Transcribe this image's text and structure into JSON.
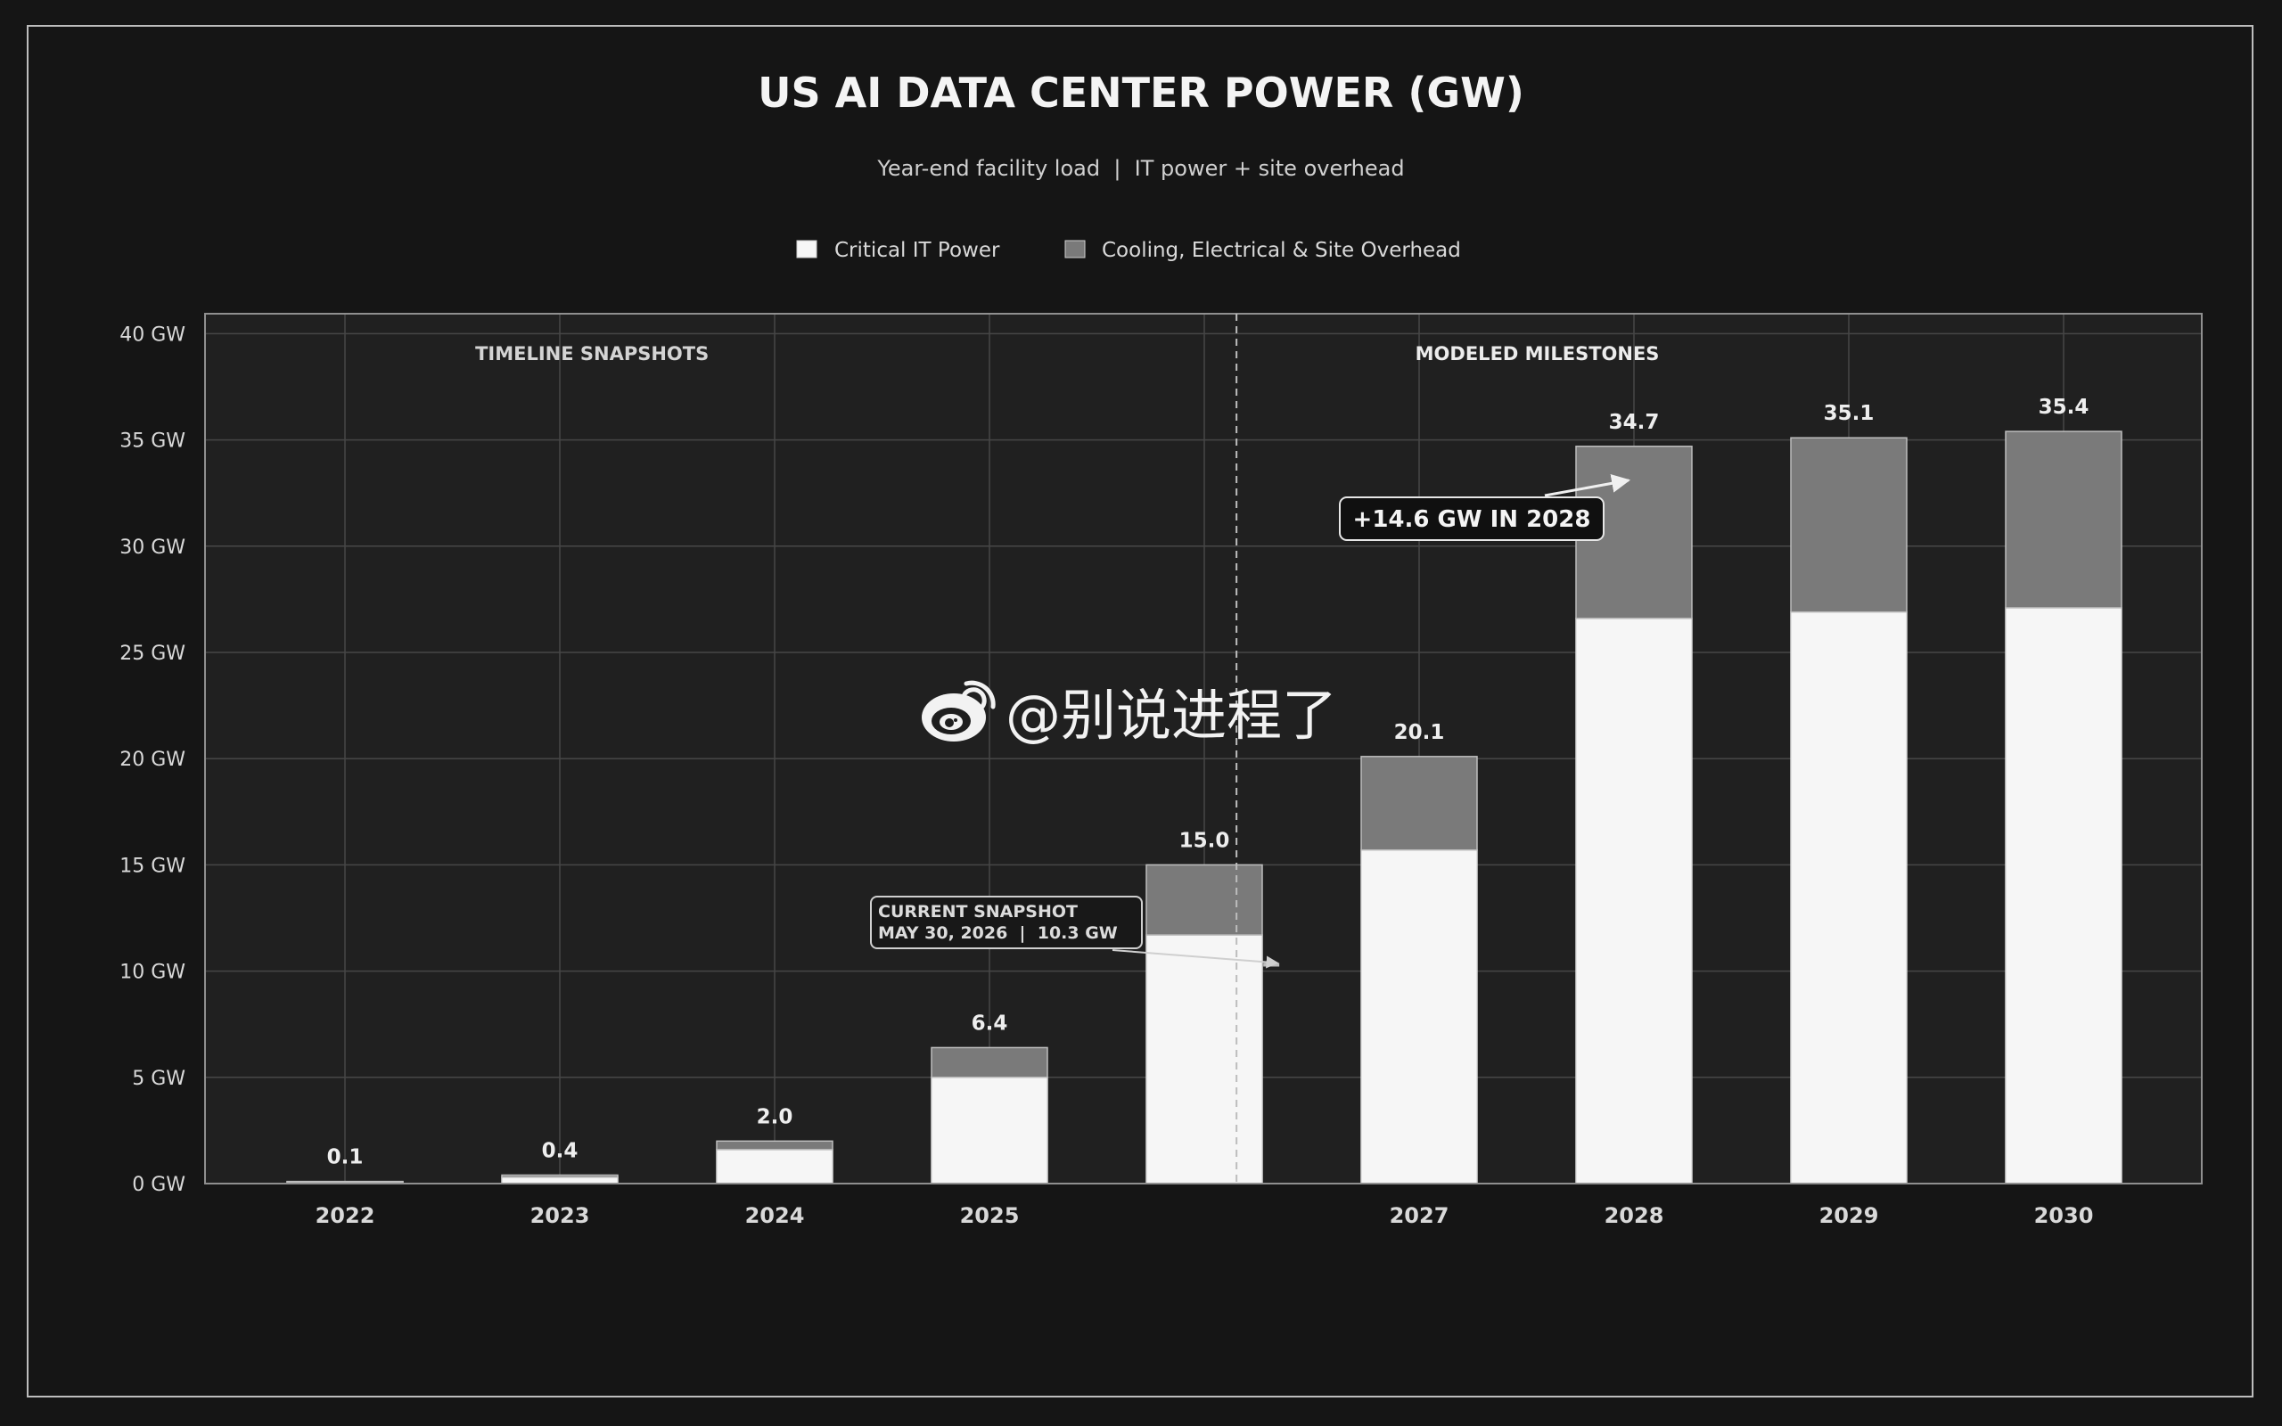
{
  "chart_data": {
    "type": "bar",
    "stacked": true,
    "title": "US AI DATA CENTER POWER (GW)",
    "subtitle": "Year-end facility load  |  IT power + site overhead",
    "xlabel": "",
    "ylabel": "",
    "y_unit_suffix": " GW",
    "ylim": [
      0,
      41
    ],
    "yticks": [
      0,
      5,
      10,
      15,
      20,
      25,
      30,
      35,
      40
    ],
    "grid": true,
    "legend_position": "top-center",
    "categories": [
      "2022",
      "2023",
      "2024",
      "2025",
      "",
      "2027",
      "2028",
      "2029",
      "2030"
    ],
    "totals_labels": [
      "0.1",
      "0.4",
      "2.0",
      "6.4",
      "15.0",
      "20.1",
      "34.7",
      "35.1",
      "35.4"
    ],
    "series": [
      {
        "name": "Critical IT Power",
        "color": "#f6f6f6",
        "values": [
          0.08,
          0.3,
          1.6,
          5.0,
          11.7,
          15.7,
          26.6,
          26.9,
          27.1
        ]
      },
      {
        "name": "Cooling, Electrical & Site Overhead",
        "color": "#7a7a7a",
        "values": [
          0.02,
          0.1,
          0.4,
          1.4,
          3.3,
          4.4,
          8.1,
          8.2,
          8.3
        ]
      }
    ],
    "section_labels": {
      "left": "TIMELINE SNAPSHOTS",
      "right": "MODELED MILESTONES"
    },
    "divider_x_position": 4.15,
    "current_snapshot": {
      "line1": "CURRENT SNAPSHOT",
      "line2": "MAY 30, 2026  |  10.3 GW",
      "value": 10.3
    },
    "annotation_2028": {
      "text": "+14.6 GW IN 2028",
      "target_category_index": 6,
      "target_value": 33.1
    },
    "watermark": "@别说进程了",
    "colors": {
      "background": "#151515",
      "plot_background": "#202020",
      "grid": "#474747",
      "text": "#d9d9d9",
      "title": "#f4f4f4"
    }
  }
}
